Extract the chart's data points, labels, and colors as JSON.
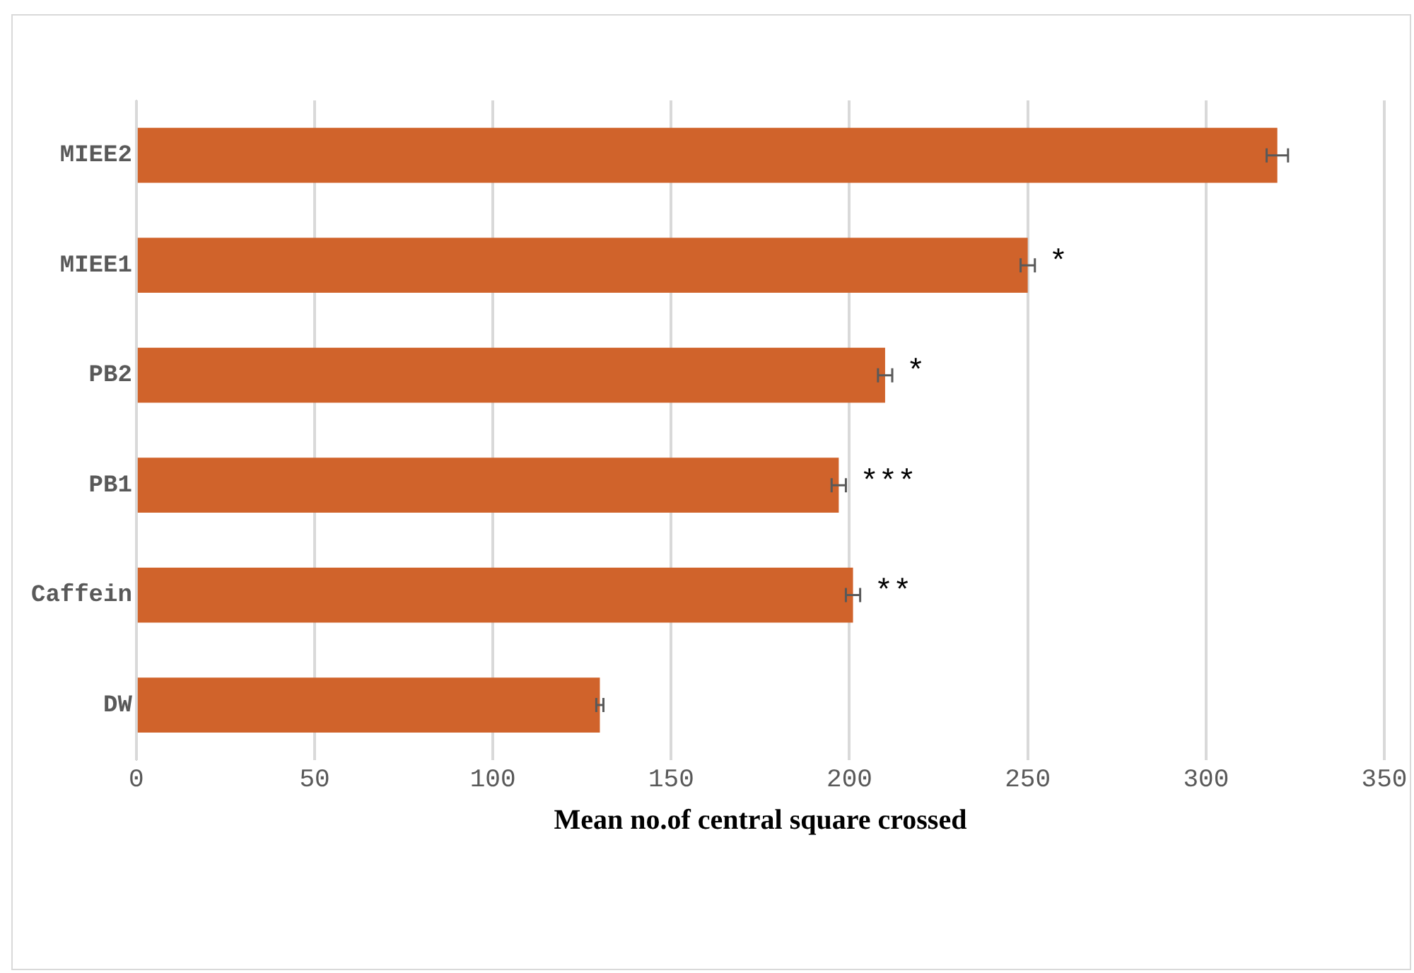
{
  "chart_data": {
    "type": "bar",
    "orientation": "horizontal",
    "xlabel": "Mean no.of central square crossed",
    "categories": [
      "MIEE2",
      "MIEE1",
      "PB2",
      "PB1",
      "Caffein",
      "DW"
    ],
    "values": [
      320,
      250,
      210,
      197,
      201,
      130
    ],
    "errors": [
      3,
      2,
      2,
      2,
      2,
      1
    ],
    "color": "#d0632b",
    "xlim": [
      0,
      350
    ],
    "xticks": [
      0,
      50,
      100,
      150,
      200,
      250,
      300,
      350
    ],
    "grid": "x",
    "legend": false,
    "value_labels": [
      null,
      "*",
      "*",
      "***",
      "**",
      null
    ]
  }
}
